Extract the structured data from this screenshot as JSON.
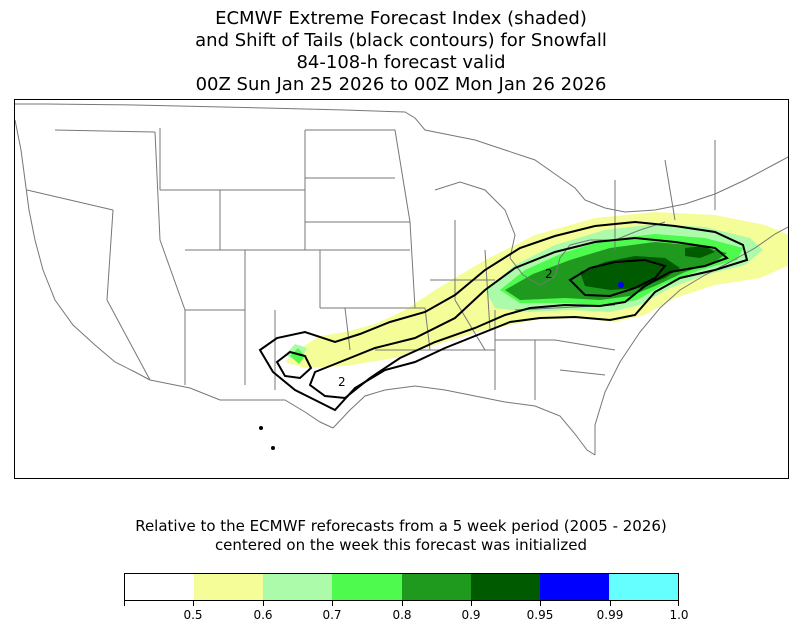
{
  "title": {
    "line1": "ECMWF Extreme Forecast Index (shaded)",
    "line2": "and Shift of Tails (black contours) for Snowfall",
    "line3": "84-108-h forecast valid",
    "line4": "00Z Sun Jan 25 2026  to  00Z Mon Jan 26 2026"
  },
  "map": {
    "region": "Contiguous United States",
    "sot_contour_label": "2"
  },
  "note": {
    "line1": "Relative to the ECMWF reforecasts from a 5 week period (2005 - 2026)",
    "line2": "centered on the week this forecast was initialized"
  },
  "colorbar": {
    "boundaries": [
      "",
      "0.5",
      "0.6",
      "0.7",
      "0.8",
      "0.9",
      "0.95",
      "0.99",
      "1.0"
    ],
    "colors": [
      "#ffffff",
      "#f5fd99",
      "#abfbab",
      "#4dfa4d",
      "#1f9a1f",
      "#005a00",
      "#0000ff",
      "#66ffff"
    ]
  }
}
